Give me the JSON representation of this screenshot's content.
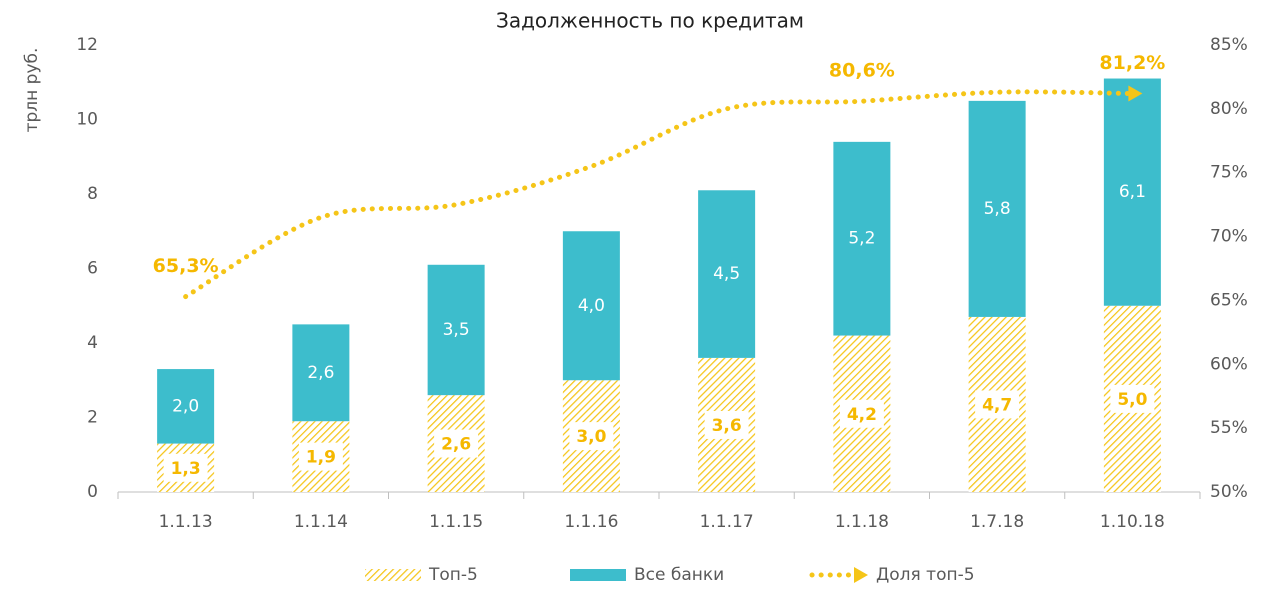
{
  "chart_data": {
    "type": "bar",
    "title": "Задолженность по кредитам",
    "y_label": "трлн руб.",
    "categories": [
      "1.1.13",
      "1.1.14",
      "1.1.15",
      "1.1.16",
      "1.1.17",
      "1.1.18",
      "1.7.18",
      "1.10.18"
    ],
    "series": [
      {
        "name": "Топ-5",
        "color": "#f5c518",
        "pattern": "hatch",
        "stacked": true,
        "values": [
          1.3,
          1.9,
          2.6,
          3.0,
          3.6,
          4.2,
          4.7,
          5.0
        ],
        "value_labels": [
          "1,3",
          "1,9",
          "2,6",
          "3,0",
          "3,6",
          "4,2",
          "4,7",
          "5,0"
        ]
      },
      {
        "name": "Все банки",
        "color": "#3dbdcc",
        "stacked": true,
        "values": [
          2.0,
          2.6,
          3.5,
          4.0,
          4.5,
          5.2,
          5.8,
          6.1
        ],
        "value_labels": [
          "2,0",
          "2,6",
          "3,5",
          "4,0",
          "4,5",
          "5,2",
          "5,8",
          "6,1"
        ]
      },
      {
        "name": "Доля топ-5",
        "type": "line",
        "axis": "y2",
        "color": "#f5c518",
        "dotted": true,
        "values": [
          65.3,
          71.5,
          72.5,
          75.5,
          80.0,
          80.6,
          81.3,
          81.2
        ],
        "value_labels": [
          "65,3%",
          null,
          null,
          null,
          null,
          "80,6%",
          null,
          "81,2%"
        ]
      }
    ],
    "ylim": [
      0,
      12
    ],
    "yticks": [
      0,
      2,
      4,
      6,
      8,
      10,
      12
    ],
    "y2lim": [
      50,
      85
    ],
    "y2ticks": [
      {
        "value": 50,
        "label": "50%"
      },
      {
        "value": 55,
        "label": "55%"
      },
      {
        "value": 60,
        "label": "60%"
      },
      {
        "value": 65,
        "label": "65%"
      },
      {
        "value": 70,
        "label": "70%"
      },
      {
        "value": 75,
        "label": "75%"
      },
      {
        "value": 80,
        "label": "80%"
      },
      {
        "value": 85,
        "label": "85%"
      }
    ],
    "legend": "bottom"
  }
}
